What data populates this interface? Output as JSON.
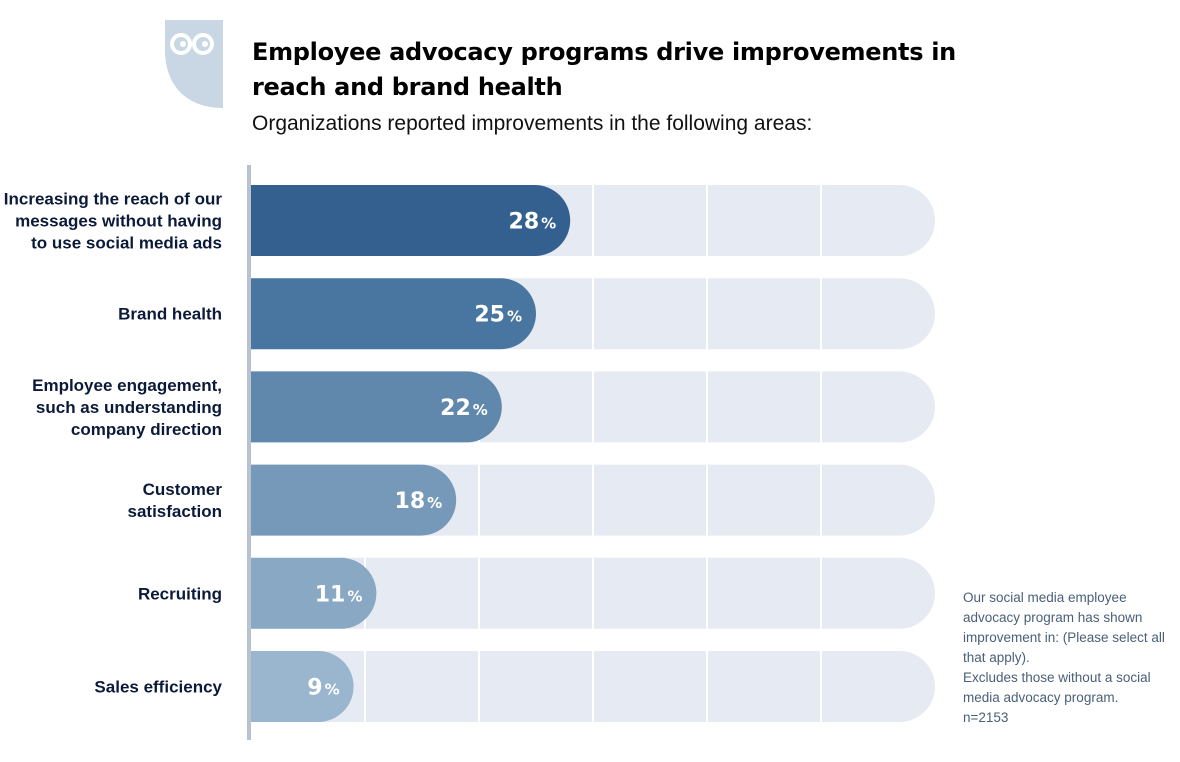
{
  "logo": {
    "name": "owl-logo",
    "color": "#c9d6e3"
  },
  "title": "Employee advocacy programs drive improvements in reach and brand health",
  "subtitle": "Organizations reported improvements in the following areas:",
  "chart_data": {
    "type": "bar",
    "orientation": "horizontal",
    "categories": [
      "Increasing the reach of our messages without having to use social media ads",
      "Brand health",
      "Employee engagement, such as understanding company direction",
      "Customer satisfaction",
      "Recruiting",
      "Sales efficiency"
    ],
    "category_lines": [
      [
        "Increasing the reach of our",
        "messages without having",
        "to use social media ads"
      ],
      [
        "Brand health"
      ],
      [
        "Employee engagement,",
        "such as understanding",
        "company direction"
      ],
      [
        "Customer",
        "satisfaction"
      ],
      [
        "Recruiting"
      ],
      [
        "Sales efficiency"
      ]
    ],
    "values": [
      28,
      25,
      22,
      18,
      11,
      9
    ],
    "value_labels": [
      "28",
      "25",
      "22",
      "18",
      "11",
      "9"
    ],
    "unit": "%",
    "xlim": [
      0,
      60
    ],
    "grid": true,
    "gridlines": [
      10,
      20,
      30,
      40,
      50
    ],
    "bar_colors": [
      "#34608f",
      "#4876a0",
      "#6088ad",
      "#7699b9",
      "#88a8c4",
      "#9ab6cf"
    ],
    "track_color": "#e6eaf2"
  },
  "footnote": {
    "question": "Our social media employee advocacy program has shown improvement in: (Please select all that apply).",
    "exclusion": "Excludes those without a social media advocacy program.",
    "sample": "n=2153"
  }
}
